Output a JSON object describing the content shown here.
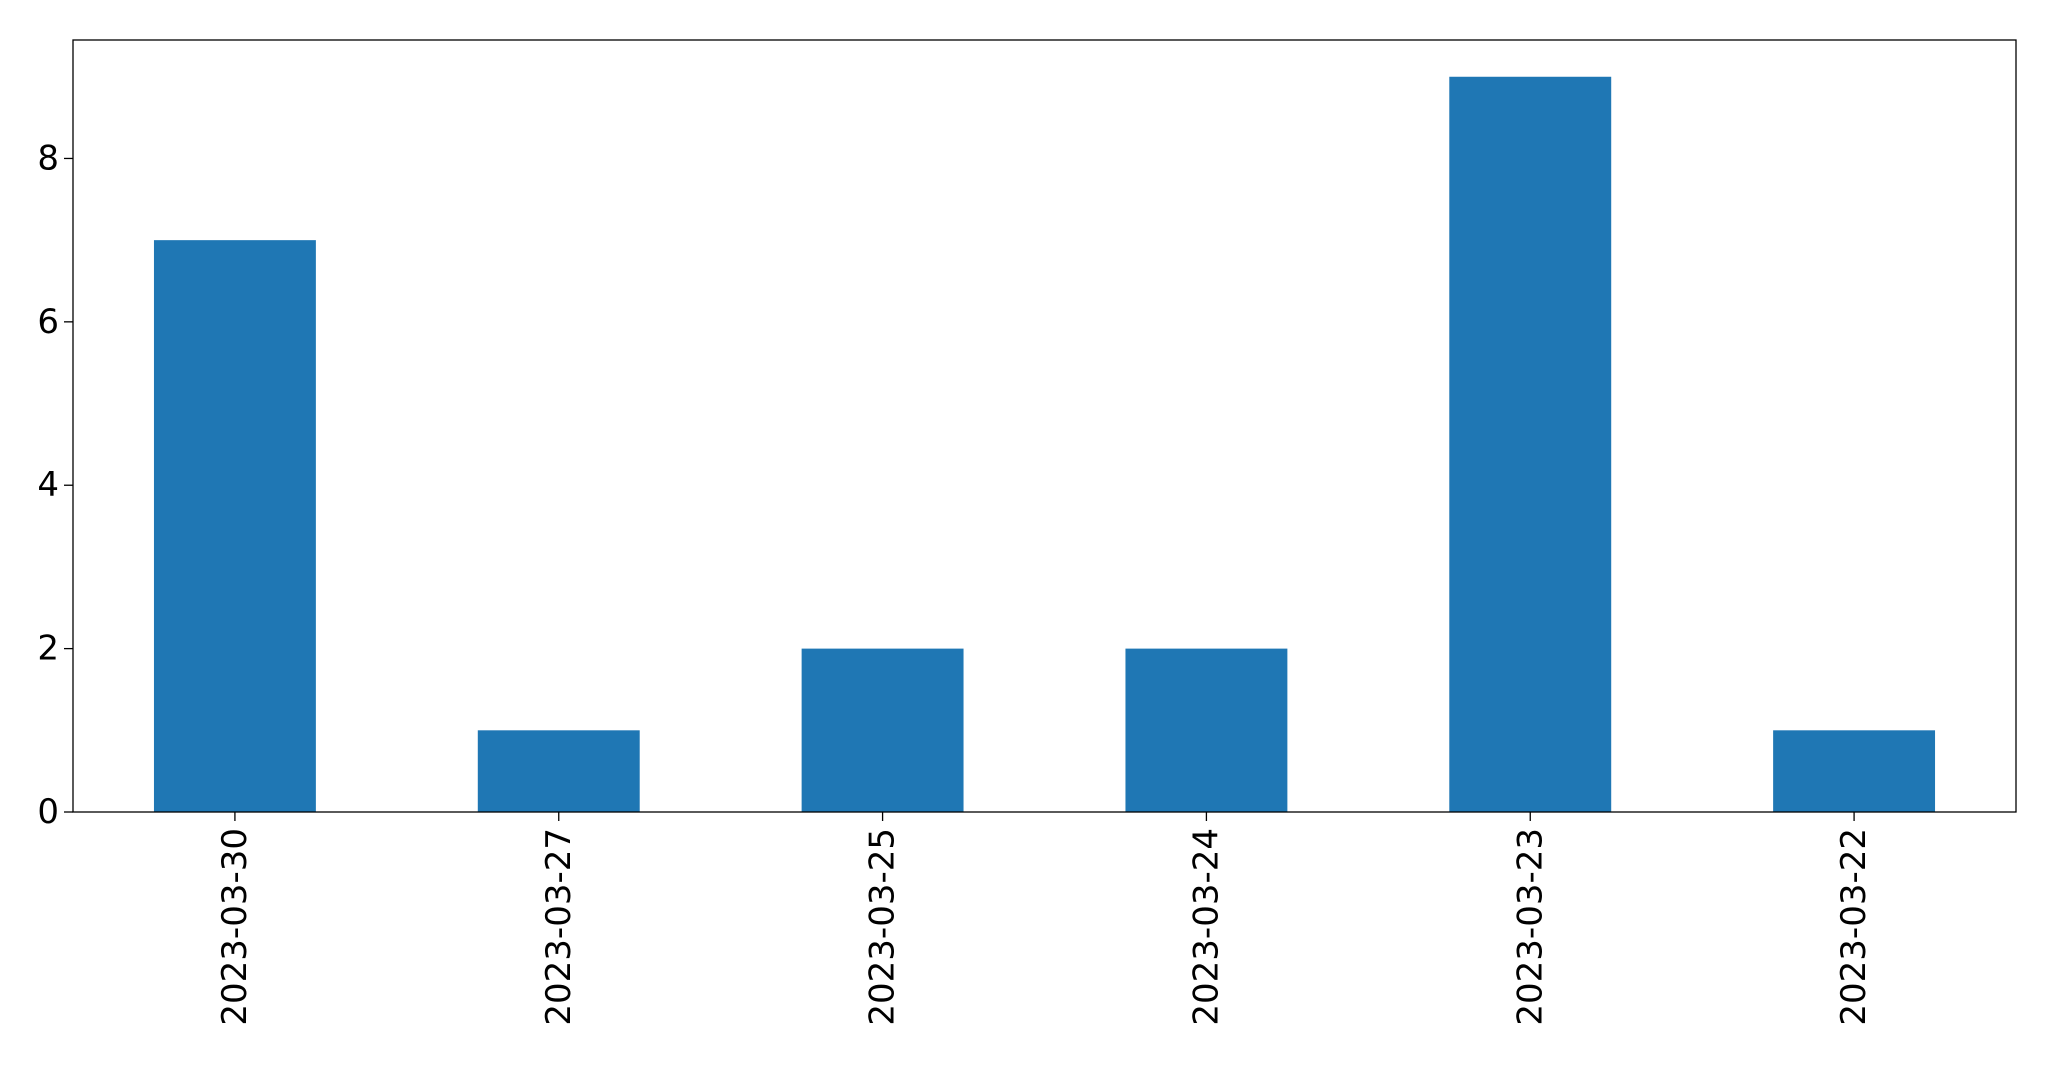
{
  "chart_data": {
    "type": "bar",
    "title": "",
    "xlabel": "",
    "ylabel": "",
    "categories": [
      "2023-03-30",
      "2023-03-27",
      "2023-03-25",
      "2023-03-24",
      "2023-03-23",
      "2023-03-22"
    ],
    "values": [
      7,
      1,
      2,
      2,
      9,
      1
    ],
    "ylim": [
      0,
      9.45
    ],
    "yticks": [
      "0",
      "2",
      "4",
      "6",
      "8"
    ],
    "grid": false,
    "legend": "none",
    "bar_color": "#1f77b4"
  }
}
